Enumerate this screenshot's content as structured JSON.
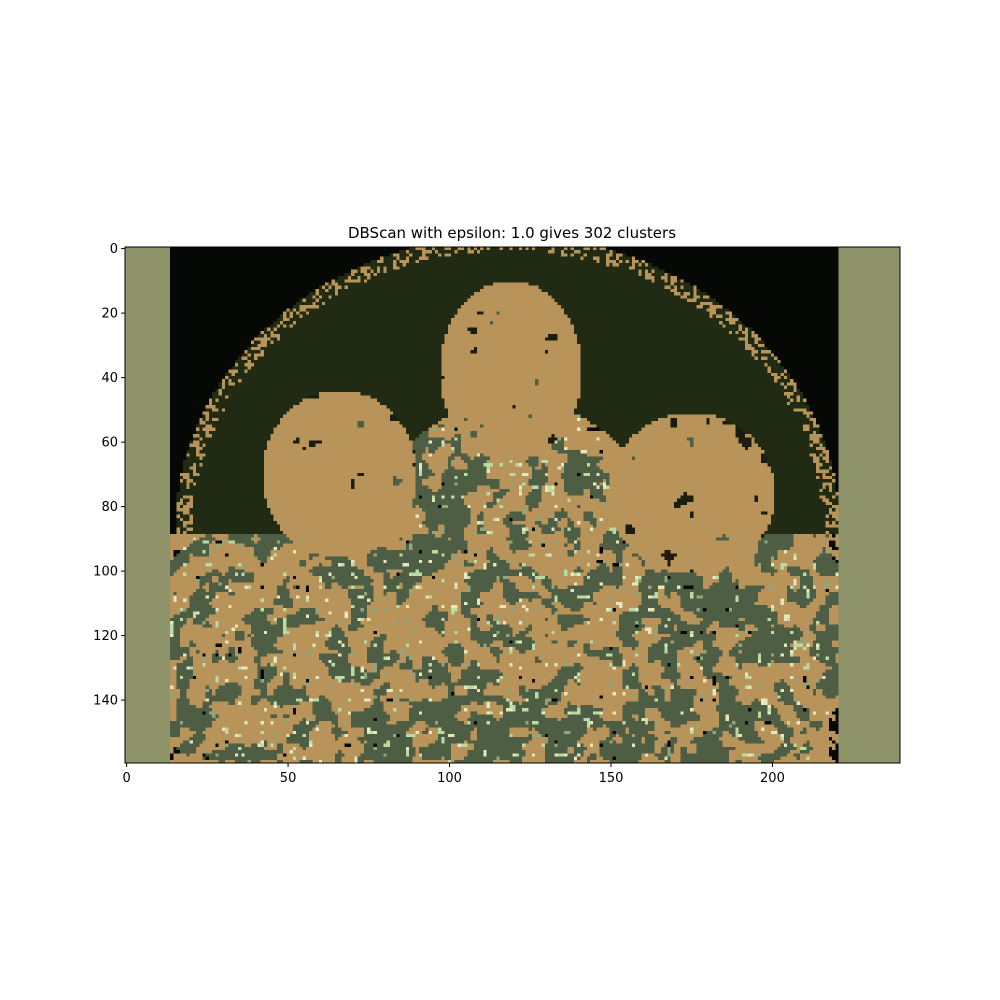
{
  "chart_data": {
    "type": "heatmap",
    "title": "DBScan with epsilon: 1.0 gives 302 clusters",
    "xlabel": "",
    "ylabel": "",
    "image_width": 240,
    "image_height": 160,
    "xlim": [
      -0.5,
      239.5
    ],
    "ylim": [
      159.5,
      -0.5
    ],
    "x_ticks": [
      0,
      50,
      100,
      150,
      200
    ],
    "y_ticks": [
      0,
      20,
      40,
      60,
      80,
      100,
      120,
      140
    ],
    "grid": false,
    "legend": "none",
    "colors": {
      "border": "#8f936a",
      "background_black": "#060805",
      "dark_green": "#212b13",
      "tan": "#b8935a",
      "grey_green": "#4d5e45",
      "light_green": "#b9dca2",
      "pale": "#e8e6bc",
      "mid_green": "#8fa67e",
      "speckle_dark": "#1c1c10"
    }
  }
}
